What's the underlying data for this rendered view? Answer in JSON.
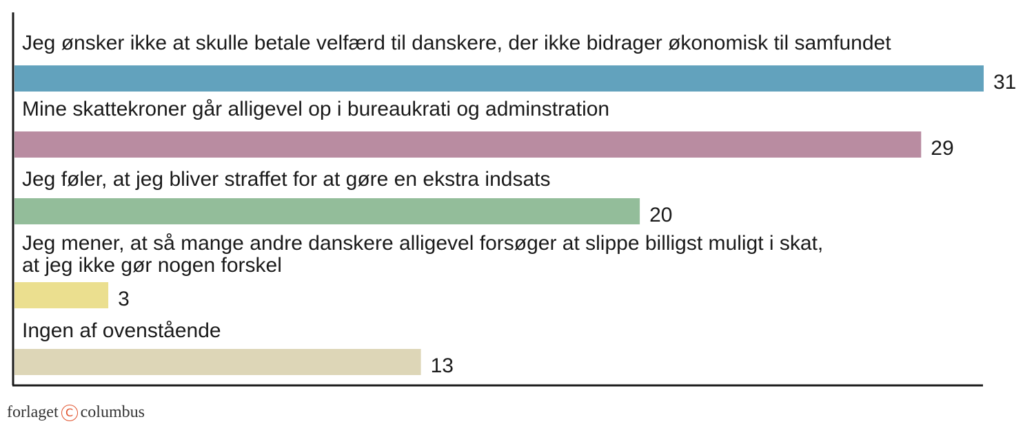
{
  "chart_data": {
    "type": "bar",
    "orientation": "horizontal",
    "categories": [
      [
        "Jeg ønsker ikke at skulle betale velfærd til danskere, der ikke bidrager økonomisk til samfundet"
      ],
      [
        "Mine skattekroner går alligevel op i bureaukrati og adminstration"
      ],
      [
        "Jeg føler, at jeg bliver straffet for at gøre en ekstra indsats"
      ],
      [
        "Jeg mener, at så mange andre danskere alligevel forsøger at slippe billigst muligt i skat,",
        "at jeg ikke gør nogen forskel"
      ],
      [
        "Ingen af ovenstående"
      ]
    ],
    "values": [
      31,
      29,
      20,
      3,
      13
    ],
    "value_labels": [
      "31",
      "29",
      "20",
      "3",
      "13"
    ],
    "colors": [
      "#62a2bd",
      "#b98ca1",
      "#93bd9a",
      "#ebdf8f",
      "#ddd6b7"
    ],
    "xlim": [
      0,
      31
    ],
    "grid": false,
    "legend": "none"
  },
  "footer": {
    "left_text": "forlaget",
    "icon": "copyright-icon",
    "icon_glyph": "C",
    "right_text": "columbus",
    "icon_color": "#e0502a"
  }
}
